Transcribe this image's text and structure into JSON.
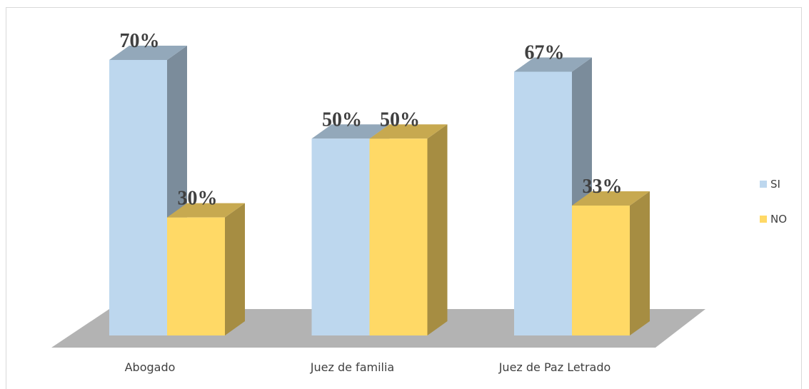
{
  "chart_data": {
    "type": "bar3d",
    "categories": [
      "Abogado",
      "Juez de familia",
      "Juez de Paz Letrado"
    ],
    "series": [
      {
        "name": "SI",
        "color": "#bdd7ee",
        "values": [
          70,
          50,
          67
        ],
        "value_labels": [
          "70%",
          "50%",
          "67%"
        ]
      },
      {
        "name": "NO",
        "color": "#ffd966",
        "values": [
          30,
          50,
          33
        ],
        "value_labels": [
          "30%",
          "50%",
          "33%"
        ]
      }
    ]
  }
}
